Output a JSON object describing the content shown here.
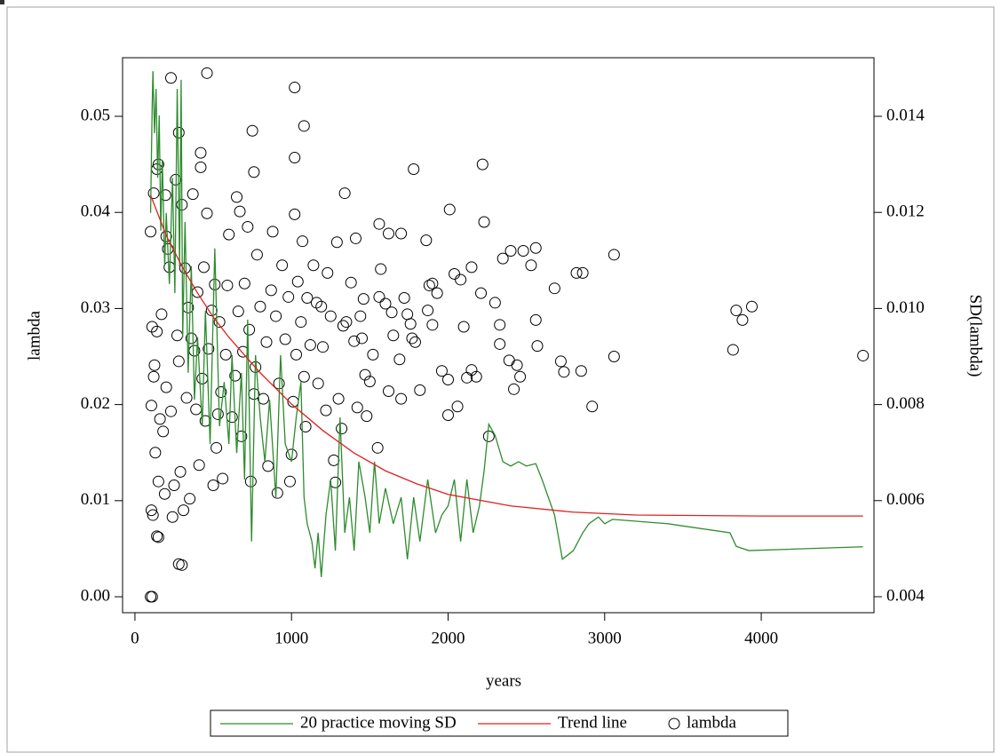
{
  "chart_data": {
    "type": "scatter",
    "xlabel": "years",
    "ylabel": "lambda",
    "y2label": "SD(lambda)",
    "xlim": [
      -79,
      4720
    ],
    "ylim": [
      -0.00166,
      0.0561
    ],
    "y2lim": [
      0.003667,
      0.01522
    ],
    "xticks": [
      0,
      1000,
      2000,
      3000,
      4000
    ],
    "yticks": [
      {
        "value": 0,
        "label": "0.00"
      },
      0.01,
      0.02,
      0.03,
      0.04,
      0.05
    ],
    "y2ticks": [
      0.004,
      0.006,
      0.008,
      {
        "value": 0.01,
        "label": "0.010"
      },
      0.012,
      0.014
    ],
    "grid": false,
    "legend": "bottom",
    "series": [
      {
        "name": "20 practice moving SD",
        "type": "line",
        "axis": "y2",
        "color": "#2e8b2e",
        "x": [
          100,
          110,
          115,
          125,
          135,
          145,
          155,
          165,
          175,
          190,
          200,
          220,
          240,
          255,
          270,
          285,
          295,
          305,
          320,
          340,
          360,
          380,
          400,
          430,
          450,
          480,
          510,
          540,
          570,
          600,
          620,
          650,
          680,
          700,
          720,
          745,
          770,
          800,
          830,
          860,
          900,
          930,
          960,
          1000,
          1030,
          1060,
          1080,
          1100,
          1130,
          1150,
          1170,
          1190,
          1220,
          1250,
          1280,
          1310,
          1340,
          1370,
          1400,
          1430,
          1470,
          1500,
          1530,
          1560,
          1600,
          1650,
          1700,
          1740,
          1780,
          1820,
          1870,
          1920,
          1960,
          2000,
          2040,
          2080,
          2120,
          2160,
          2200,
          2230,
          2260,
          2300,
          2350,
          2400,
          2450,
          2500,
          2560,
          2600,
          2680,
          2730,
          2800,
          2860,
          2900,
          2960,
          3000,
          3050,
          3400,
          3800,
          3840,
          3920,
          4650
        ],
        "values": [
          0.01199,
          0.0142,
          0.01494,
          0.01365,
          0.01457,
          0.01272,
          0.01402,
          0.01162,
          0.01309,
          0.01088,
          0.01199,
          0.01051,
          0.01272,
          0.01032,
          0.01457,
          0.01088,
          0.01476,
          0.0094,
          0.0118,
          0.00866,
          0.01088,
          0.0081,
          0.0094,
          0.00755,
          0.00995,
          0.00718,
          0.01125,
          0.00755,
          0.00847,
          0.00718,
          0.00903,
          0.00699,
          0.00866,
          0.00644,
          0.00977,
          0.00515,
          0.00903,
          0.00773,
          0.00681,
          0.0081,
          0.00607,
          0.00903,
          0.00718,
          0.00681,
          0.00773,
          0.00847,
          0.00607,
          0.00552,
          0.00515,
          0.00459,
          0.00533,
          0.00441,
          0.0057,
          0.00644,
          0.00496,
          0.00773,
          0.00533,
          0.00607,
          0.00496,
          0.00681,
          0.00607,
          0.00533,
          0.00681,
          0.00552,
          0.00626,
          0.00552,
          0.00607,
          0.00478,
          0.00607,
          0.00515,
          0.00644,
          0.00533,
          0.0057,
          0.00589,
          0.00644,
          0.00515,
          0.00644,
          0.00533,
          0.00589,
          0.00662,
          0.00759,
          0.00736,
          0.00681,
          0.00672,
          0.00681,
          0.00672,
          0.00677,
          0.00644,
          0.0057,
          0.00478,
          0.00496,
          0.00533,
          0.00552,
          0.00566,
          0.00552,
          0.00561,
          0.00552,
          0.00533,
          0.00505,
          0.00496,
          0.00504
        ]
      },
      {
        "name": "Trend line",
        "type": "line",
        "axis": "y2",
        "color": "#e02020",
        "x": [
          100,
          200,
          300,
          400,
          500,
          600,
          800,
          1000,
          1200,
          1400,
          1600,
          1800,
          2000,
          2400,
          2800,
          3200,
          4000,
          4650
        ],
        "values": [
          0.01236,
          0.01152,
          0.01088,
          0.01032,
          0.00982,
          0.0094,
          0.00866,
          0.00801,
          0.00746,
          0.00699,
          0.00662,
          0.00635,
          0.00613,
          0.00589,
          0.00576,
          0.0057,
          0.00568,
          0.00568
        ]
      },
      {
        "name": "lambda",
        "type": "scatter",
        "color": "#000000",
        "x": [
          100,
          110,
          105,
          115,
          140,
          150,
          280,
          300,
          230,
          460,
          1020,
          750,
          1080,
          280,
          1020,
          2220,
          1780,
          140,
          150,
          420,
          760,
          1340,
          120,
          195,
          2010,
          1020,
          2230,
          1560,
          100,
          200,
          1620,
          1700,
          1410,
          1860,
          2820,
          2860,
          3060,
          2560,
          2480,
          2400,
          2350,
          2680,
          2530,
          3820,
          3840,
          3880,
          3940,
          4650,
          3060,
          2920,
          2740,
          2720,
          2850,
          2560,
          2570,
          2460,
          2420,
          2440,
          2390,
          2300,
          2330,
          2330,
          2260,
          2210,
          2180,
          2150,
          2150,
          2100,
          2120,
          2080,
          2060,
          2040,
          2000,
          2000,
          1960,
          1930,
          1900,
          1880,
          1900,
          1870,
          1820,
          1790,
          1770,
          1760,
          1740,
          1720,
          1700,
          1690,
          1650,
          1640,
          1620,
          1600,
          1570,
          1560,
          1550,
          1520,
          1500,
          1480,
          1470,
          1460,
          1450,
          1440,
          1420,
          1400,
          1380,
          1350,
          1330,
          1320,
          1300,
          1290,
          1270,
          1280,
          1250,
          1230,
          1220,
          1200,
          1190,
          1170,
          1160,
          1140,
          1120,
          1100,
          1090,
          1080,
          1070,
          1060,
          1040,
          1030,
          1010,
          1000,
          990,
          980,
          960,
          940,
          920,
          910,
          900,
          880,
          870,
          850,
          840,
          820,
          800,
          780,
          770,
          760,
          740,
          730,
          720,
          700,
          690,
          680,
          670,
          660,
          650,
          640,
          620,
          600,
          590,
          580,
          560,
          550,
          540,
          530,
          520,
          510,
          500,
          490,
          470,
          460,
          450,
          440,
          430,
          420,
          410,
          400,
          390,
          380,
          370,
          360,
          350,
          340,
          330,
          320,
          310,
          300,
          290,
          280,
          270,
          260,
          250,
          240,
          230,
          220,
          210,
          200,
          190,
          180,
          170,
          160,
          150,
          140,
          130,
          125,
          120,
          110,
          105
        ],
        "values": [
          0.0,
          0.0,
          0.009,
          0.0085,
          0.0063,
          0.0062,
          0.0034,
          0.0033,
          0.054,
          0.0545,
          0.053,
          0.0485,
          0.049,
          0.0483,
          0.0457,
          0.045,
          0.0445,
          0.0445,
          0.045,
          0.0462,
          0.0442,
          0.042,
          0.042,
          0.0418,
          0.0403,
          0.0398,
          0.039,
          0.0388,
          0.038,
          0.0375,
          0.0378,
          0.0378,
          0.0373,
          0.0371,
          0.0337,
          0.0337,
          0.0356,
          0.0363,
          0.036,
          0.036,
          0.0352,
          0.0321,
          0.0345,
          0.0257,
          0.0298,
          0.0288,
          0.0302,
          0.0251,
          0.025,
          0.0198,
          0.0234,
          0.0245,
          0.0235,
          0.0288,
          0.0261,
          0.0229,
          0.0216,
          0.0241,
          0.0246,
          0.0306,
          0.0283,
          0.0263,
          0.0167,
          0.0316,
          0.0229,
          0.0343,
          0.0236,
          0.0281,
          0.0228,
          0.033,
          0.0198,
          0.0336,
          0.0189,
          0.0226,
          0.0235,
          0.0316,
          0.0326,
          0.0324,
          0.0283,
          0.0298,
          0.0215,
          0.0265,
          0.0269,
          0.0284,
          0.0294,
          0.0311,
          0.0206,
          0.0247,
          0.0272,
          0.0296,
          0.0214,
          0.0305,
          0.0341,
          0.0312,
          0.0155,
          0.0252,
          0.0224,
          0.0188,
          0.0231,
          0.031,
          0.0269,
          0.0292,
          0.0197,
          0.0266,
          0.0327,
          0.0286,
          0.0282,
          0.0175,
          0.0206,
          0.0369,
          0.0142,
          0.0119,
          0.0292,
          0.0337,
          0.0194,
          0.026,
          0.0302,
          0.0222,
          0.0306,
          0.0345,
          0.0262,
          0.0311,
          0.0177,
          0.0229,
          0.037,
          0.0286,
          0.0328,
          0.0252,
          0.0203,
          0.0148,
          0.012,
          0.0312,
          0.0268,
          0.0345,
          0.0222,
          0.0108,
          0.0292,
          0.038,
          0.0319,
          0.0136,
          0.0265,
          0.0206,
          0.0302,
          0.0356,
          0.0239,
          0.0211,
          0.012,
          0.0278,
          0.0385,
          0.0326,
          0.0255,
          0.0167,
          0.0401,
          0.0297,
          0.0416,
          0.023,
          0.0187,
          0.0377,
          0.0324,
          0.0252,
          0.0123,
          0.0213,
          0.0286,
          0.019,
          0.0155,
          0.0325,
          0.0116,
          0.0298,
          0.0258,
          0.0399,
          0.0183,
          0.0343,
          0.0227,
          0.0447,
          0.0137,
          0.0317,
          0.0195,
          0.0256,
          0.0419,
          0.0269,
          0.0102,
          0.0301,
          0.0207,
          0.0342,
          0.009,
          0.0408,
          0.013,
          0.0245,
          0.0272,
          0.0434,
          0.0116,
          0.0083,
          0.0193,
          0.0343,
          0.0362,
          0.0218,
          0.0107,
          0.0172,
          0.0294,
          0.0185,
          0.012,
          0.0276,
          0.015,
          0.0241,
          0.0229,
          0.0281,
          0.0199
        ]
      }
    ]
  }
}
